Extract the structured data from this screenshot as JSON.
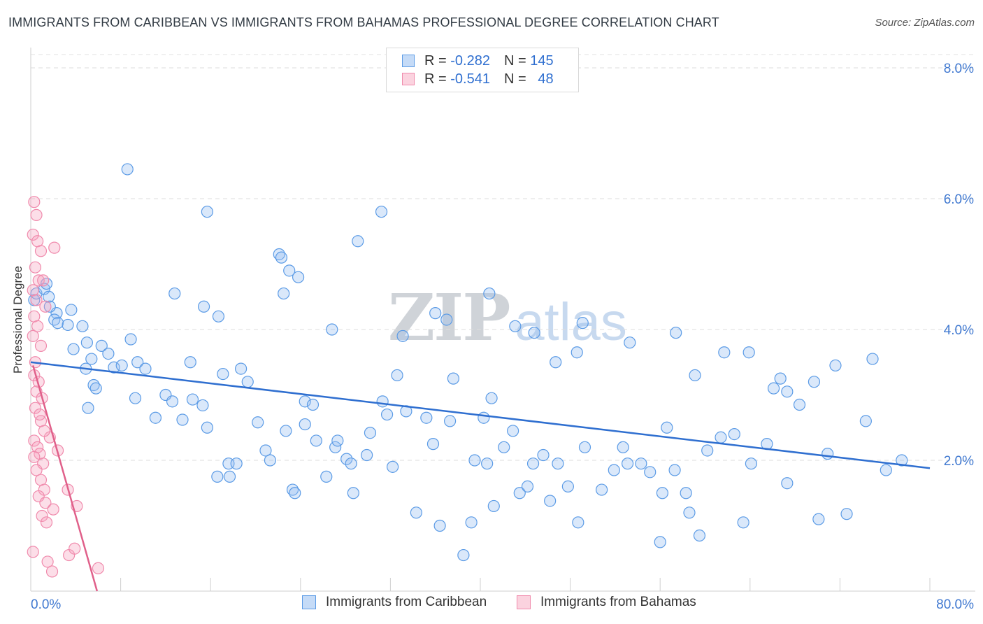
{
  "title": "IMMIGRANTS FROM CARIBBEAN VS IMMIGRANTS FROM BAHAMAS PROFESSIONAL DEGREE CORRELATION CHART",
  "source": "Source: ZipAtlas.com",
  "watermark": {
    "zip": "ZIP",
    "atlas": "atlas"
  },
  "legend": {
    "rows": [
      {
        "r_label": "R =",
        "r_value": "-0.282",
        "n_label": "N =",
        "n_value": "145"
      },
      {
        "r_label": "R =",
        "r_value": "-0.541",
        "n_label": "N =",
        "n_value": "48"
      }
    ]
  },
  "chart_data": {
    "type": "scatter",
    "title": "IMMIGRANTS FROM CARIBBEAN VS IMMIGRANTS FROM BAHAMAS PROFESSIONAL DEGREE CORRELATION CHART",
    "xlabel": "",
    "ylabel": "Professional Degree",
    "xlim": [
      0,
      80
    ],
    "ylim": [
      0,
      8.0
    ],
    "x_tick_labels": [
      "0.0%",
      "80.0%"
    ],
    "y_tick_labels": [
      "2.0%",
      "4.0%",
      "6.0%",
      "8.0%"
    ],
    "y_ticks": [
      2.0,
      4.0,
      6.0,
      8.0
    ],
    "grid": "horizontal dashed",
    "legend_position": "top-center",
    "colors": {
      "caribbean": "#5b9be6",
      "caribbean_line": "#2f6fd0",
      "bahamas": "#f08aac",
      "bahamas_line": "#e0608a",
      "tick_text": "#3f78d0"
    },
    "series": [
      {
        "name": "Immigrants from Caribbean",
        "r": -0.282,
        "n": 145,
        "trend": {
          "x": [
            0,
            80
          ],
          "y": [
            3.5,
            1.88
          ]
        },
        "points": [
          [
            0.3,
            4.45
          ],
          [
            0.5,
            4.55
          ],
          [
            1.2,
            4.62
          ],
          [
            1.6,
            4.5
          ],
          [
            1.4,
            4.7
          ],
          [
            2.3,
            4.25
          ],
          [
            2.1,
            4.15
          ],
          [
            2.4,
            4.1
          ],
          [
            3.3,
            4.07
          ],
          [
            4.6,
            4.05
          ],
          [
            3.8,
            3.7
          ],
          [
            4.9,
            3.4
          ],
          [
            5.4,
            3.55
          ],
          [
            5.0,
            3.8
          ],
          [
            6.3,
            3.75
          ],
          [
            5.6,
            3.15
          ],
          [
            6.9,
            3.63
          ],
          [
            7.4,
            3.42
          ],
          [
            8.1,
            3.45
          ],
          [
            8.9,
            3.85
          ],
          [
            9.5,
            3.5
          ],
          [
            10.2,
            3.4
          ],
          [
            5.1,
            2.8
          ],
          [
            5.8,
            3.1
          ],
          [
            9.3,
            2.95
          ],
          [
            11.1,
            2.65
          ],
          [
            12.0,
            3.0
          ],
          [
            12.6,
            2.9
          ],
          [
            13.5,
            2.62
          ],
          [
            14.2,
            3.5
          ],
          [
            14.4,
            2.93
          ],
          [
            15.3,
            2.84
          ],
          [
            15.7,
            2.5
          ],
          [
            17.1,
            3.32
          ],
          [
            18.7,
            3.4
          ],
          [
            19.3,
            3.2
          ],
          [
            16.6,
            1.75
          ],
          [
            17.7,
            1.75
          ],
          [
            17.6,
            1.95
          ],
          [
            18.3,
            1.95
          ],
          [
            20.2,
            2.58
          ],
          [
            20.9,
            2.15
          ],
          [
            21.3,
            2.0
          ],
          [
            22.7,
            2.45
          ],
          [
            23.3,
            1.55
          ],
          [
            23.5,
            1.5
          ],
          [
            24.4,
            2.9
          ],
          [
            25.1,
            2.85
          ],
          [
            26.3,
            1.75
          ],
          [
            27.1,
            2.2
          ],
          [
            28.1,
            2.02
          ],
          [
            28.5,
            1.95
          ],
          [
            28.7,
            1.5
          ],
          [
            29.9,
            2.08
          ],
          [
            30.2,
            2.42
          ],
          [
            31.3,
            2.9
          ],
          [
            31.7,
            2.7
          ],
          [
            32.2,
            1.9
          ],
          [
            32.6,
            3.3
          ],
          [
            33.4,
            2.75
          ],
          [
            34.3,
            1.2
          ],
          [
            35.2,
            2.65
          ],
          [
            35.8,
            2.25
          ],
          [
            36.4,
            1.0
          ],
          [
            37.3,
            2.6
          ],
          [
            37.6,
            3.25
          ],
          [
            38.5,
            0.55
          ],
          [
            39.2,
            1.05
          ],
          [
            39.5,
            2.0
          ],
          [
            40.6,
            1.95
          ],
          [
            40.3,
            2.65
          ],
          [
            41.0,
            2.95
          ],
          [
            41.2,
            1.3
          ],
          [
            42.1,
            2.2
          ],
          [
            42.9,
            2.45
          ],
          [
            43.5,
            1.5
          ],
          [
            44.2,
            1.6
          ],
          [
            44.7,
            1.95
          ],
          [
            45.6,
            2.08
          ],
          [
            46.2,
            1.38
          ],
          [
            46.9,
            1.95
          ],
          [
            47.8,
            1.6
          ],
          [
            48.7,
            1.05
          ],
          [
            49.3,
            2.2
          ],
          [
            50.8,
            1.55
          ],
          [
            51.9,
            1.85
          ],
          [
            52.7,
            2.2
          ],
          [
            53.1,
            1.95
          ],
          [
            54.3,
            1.95
          ],
          [
            55.1,
            1.82
          ],
          [
            56.2,
            1.5
          ],
          [
            56.6,
            2.5
          ],
          [
            57.3,
            1.85
          ],
          [
            58.3,
            1.5
          ],
          [
            59.5,
            0.85
          ],
          [
            60.2,
            2.15
          ],
          [
            61.4,
            2.35
          ],
          [
            62.6,
            2.4
          ],
          [
            63.4,
            1.05
          ],
          [
            64.1,
            1.95
          ],
          [
            65.5,
            2.25
          ],
          [
            66.7,
            3.25
          ],
          [
            67.3,
            3.05
          ],
          [
            68.4,
            2.85
          ],
          [
            69.7,
            3.2
          ],
          [
            70.9,
            2.1
          ],
          [
            71.6,
            3.45
          ],
          [
            72.6,
            1.18
          ],
          [
            74.3,
            2.6
          ],
          [
            74.9,
            3.55
          ],
          [
            76.1,
            1.85
          ],
          [
            77.5,
            2.0
          ],
          [
            15.4,
            4.35
          ],
          [
            16.7,
            4.2
          ],
          [
            22.5,
            4.55
          ],
          [
            26.8,
            4.0
          ],
          [
            3.6,
            4.3
          ],
          [
            1.7,
            4.35
          ],
          [
            12.8,
            4.55
          ],
          [
            22.1,
            5.15
          ],
          [
            40.8,
            4.55
          ],
          [
            44.8,
            3.95
          ],
          [
            49.1,
            4.1
          ],
          [
            57.4,
            3.95
          ],
          [
            37.0,
            4.15
          ],
          [
            43.1,
            4.05
          ],
          [
            33.1,
            3.9
          ],
          [
            53.3,
            3.8
          ],
          [
            46.7,
            3.5
          ],
          [
            48.6,
            3.65
          ],
          [
            61.7,
            3.65
          ],
          [
            63.9,
            3.65
          ],
          [
            59.1,
            3.3
          ],
          [
            66.1,
            3.1
          ],
          [
            58.6,
            1.2
          ],
          [
            70.1,
            1.1
          ],
          [
            56.0,
            0.75
          ],
          [
            67.3,
            1.65
          ],
          [
            8.6,
            6.45
          ],
          [
            15.7,
            5.8
          ],
          [
            31.2,
            5.8
          ],
          [
            29.1,
            5.35
          ],
          [
            22.3,
            5.1
          ],
          [
            23.0,
            4.9
          ],
          [
            23.8,
            4.8
          ],
          [
            24.4,
            2.55
          ],
          [
            25.4,
            2.3
          ],
          [
            27.3,
            2.3
          ],
          [
            36.0,
            4.25
          ]
        ]
      },
      {
        "name": "Immigrants from Bahamas",
        "r": -0.541,
        "n": 48,
        "trend": {
          "x": [
            0.2,
            5.9
          ],
          "y": [
            3.45,
            0.0
          ]
        },
        "points": [
          [
            0.3,
            5.95
          ],
          [
            0.5,
            5.75
          ],
          [
            0.2,
            5.45
          ],
          [
            0.6,
            5.35
          ],
          [
            0.9,
            5.2
          ],
          [
            2.1,
            5.25
          ],
          [
            0.4,
            4.95
          ],
          [
            0.7,
            4.75
          ],
          [
            1.1,
            4.75
          ],
          [
            0.2,
            4.6
          ],
          [
            0.5,
            4.45
          ],
          [
            1.3,
            4.35
          ],
          [
            0.3,
            4.2
          ],
          [
            0.6,
            4.05
          ],
          [
            0.2,
            3.9
          ],
          [
            0.9,
            3.75
          ],
          [
            0.4,
            3.5
          ],
          [
            0.3,
            3.3
          ],
          [
            0.7,
            3.2
          ],
          [
            0.5,
            3.05
          ],
          [
            1.0,
            2.95
          ],
          [
            0.4,
            2.8
          ],
          [
            0.9,
            2.6
          ],
          [
            0.3,
            2.3
          ],
          [
            0.6,
            2.2
          ],
          [
            0.8,
            2.1
          ],
          [
            1.1,
            1.95
          ],
          [
            0.5,
            1.85
          ],
          [
            0.9,
            1.7
          ],
          [
            1.2,
            1.55
          ],
          [
            0.7,
            1.45
          ],
          [
            1.3,
            1.35
          ],
          [
            0.3,
            2.05
          ],
          [
            1.0,
            1.15
          ],
          [
            1.4,
            1.05
          ],
          [
            2.0,
            1.25
          ],
          [
            3.3,
            1.55
          ],
          [
            4.1,
            1.3
          ],
          [
            0.2,
            0.6
          ],
          [
            1.5,
            0.45
          ],
          [
            1.9,
            0.3
          ],
          [
            3.4,
            0.55
          ],
          [
            3.9,
            0.65
          ],
          [
            6.0,
            0.35
          ],
          [
            2.4,
            2.15
          ],
          [
            1.7,
            2.35
          ],
          [
            1.2,
            2.45
          ],
          [
            0.8,
            2.7
          ]
        ]
      }
    ]
  }
}
